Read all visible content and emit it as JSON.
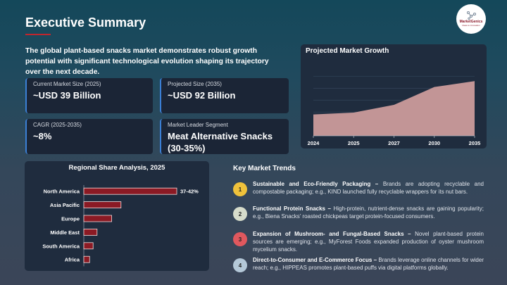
{
  "header": {
    "title": "Executive Summary",
    "logo_text": "MarketGenics",
    "logo_tagline": "Ideas to innovation"
  },
  "summary": "The global plant-based snacks market demonstrates robust growth potential with significant technological evolution shaping its trajectory over the next decade.",
  "cards": [
    {
      "label": "Current Market Size (2025)",
      "value": "~USD 39 Billion"
    },
    {
      "label": "Projected Size (2035)",
      "value": "~USD 92 Billion"
    },
    {
      "label": "CAGR (2025-2035)",
      "value": "~8%"
    },
    {
      "label": "Market Leader Segment",
      "value": "Meat Alternative Snacks (30-35%)"
    }
  ],
  "chart_data": [
    {
      "type": "area",
      "title": "Projected Market Growth",
      "categories": [
        "2024",
        "2025",
        "2027",
        "2030",
        "2035"
      ],
      "values": [
        36,
        39,
        52,
        82,
        92
      ],
      "ylim": [
        0,
        110
      ],
      "grid": true,
      "color": "#c29596"
    },
    {
      "type": "bar",
      "orientation": "horizontal",
      "title": "Regional Share Analysis, 2025",
      "categories": [
        "North America",
        "Asia Pacific",
        "Europe",
        "Middle East",
        "South America",
        "Africa"
      ],
      "values": [
        40,
        16,
        12,
        5.7,
        4,
        2.5
      ],
      "data_labels": [
        "37-42%",
        "",
        "",
        "",
        "",
        ""
      ],
      "color": "#8b1a24"
    }
  ],
  "trends": {
    "title": "Key Market Trends",
    "items": [
      {
        "num": "1",
        "color": "#f0c23b",
        "head": "Sustainable and Eco-Friendly Packaging –",
        "body": " Brands are adopting recyclable and compostable packaging; e.g., KIND launched fully recyclable wrappers for its nut bars."
      },
      {
        "num": "2",
        "color": "#d6dccb",
        "head": "Functional Protein Snacks –",
        "body": " High-protein, nutrient-dense snacks are gaining popularity; e.g., Biena Snacks’ roasted chickpeas target protein-focused consumers."
      },
      {
        "num": "3",
        "color": "#e0585e",
        "head": "Expansion of Mushroom- and Fungal-Based Snacks –",
        "body": " Novel plant-based protein sources are emerging; e.g., MyForest Foods expanded production of oyster mushroom mycelium snacks."
      },
      {
        "num": "4",
        "color": "#b4c8d8",
        "head": "Direct-to-Consumer and E-Commerce Focus –",
        "body": " Brands leverage online channels for wider reach; e.g., HIPPEAS promotes plant-based puffs via digital platforms globally."
      }
    ]
  }
}
